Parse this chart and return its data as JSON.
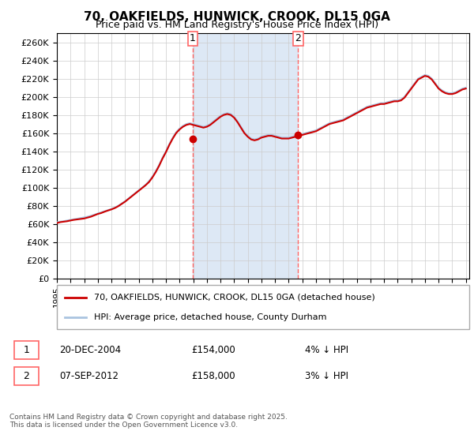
{
  "title": "70, OAKFIELDS, HUNWICK, CROOK, DL15 0GA",
  "subtitle": "Price paid vs. HM Land Registry's House Price Index (HPI)",
  "background_color": "#ffffff",
  "plot_bg_color": "#ffffff",
  "grid_color": "#cccccc",
  "hpi_color": "#aac4e0",
  "price_color": "#cc0000",
  "highlight_bg": "#dde8f5",
  "dashed_line_color": "#ff6666",
  "ylim": [
    0,
    270000
  ],
  "ytick_step": 20000,
  "legend_label_price": "70, OAKFIELDS, HUNWICK, CROOK, DL15 0GA (detached house)",
  "legend_label_hpi": "HPI: Average price, detached house, County Durham",
  "sale1_date": "20-DEC-2004",
  "sale1_price": "£154,000",
  "sale1_note": "4% ↓ HPI",
  "sale2_date": "07-SEP-2012",
  "sale2_price": "£158,000",
  "sale2_note": "3% ↓ HPI",
  "footer": "Contains HM Land Registry data © Crown copyright and database right 2025.\nThis data is licensed under the Open Government Licence v3.0.",
  "sale1_x": 2004.97,
  "sale2_x": 2012.69,
  "hpi_x": [
    1995.0,
    1995.25,
    1995.5,
    1995.75,
    1996.0,
    1996.25,
    1996.5,
    1996.75,
    1997.0,
    1997.25,
    1997.5,
    1997.75,
    1998.0,
    1998.25,
    1998.5,
    1998.75,
    1999.0,
    1999.25,
    1999.5,
    1999.75,
    2000.0,
    2000.25,
    2000.5,
    2000.75,
    2001.0,
    2001.25,
    2001.5,
    2001.75,
    2002.0,
    2002.25,
    2002.5,
    2002.75,
    2003.0,
    2003.25,
    2003.5,
    2003.75,
    2004.0,
    2004.25,
    2004.5,
    2004.75,
    2005.0,
    2005.25,
    2005.5,
    2005.75,
    2006.0,
    2006.25,
    2006.5,
    2006.75,
    2007.0,
    2007.25,
    2007.5,
    2007.75,
    2008.0,
    2008.25,
    2008.5,
    2008.75,
    2009.0,
    2009.25,
    2009.5,
    2009.75,
    2010.0,
    2010.25,
    2010.5,
    2010.75,
    2011.0,
    2011.25,
    2011.5,
    2011.75,
    2012.0,
    2012.25,
    2012.5,
    2012.75,
    2013.0,
    2013.25,
    2013.5,
    2013.75,
    2014.0,
    2014.25,
    2014.5,
    2014.75,
    2015.0,
    2015.25,
    2015.5,
    2015.75,
    2016.0,
    2016.25,
    2016.5,
    2016.75,
    2017.0,
    2017.25,
    2017.5,
    2017.75,
    2018.0,
    2018.25,
    2018.5,
    2018.75,
    2019.0,
    2019.25,
    2019.5,
    2019.75,
    2020.0,
    2020.25,
    2020.5,
    2020.75,
    2021.0,
    2021.25,
    2021.5,
    2021.75,
    2022.0,
    2022.25,
    2022.5,
    2022.75,
    2023.0,
    2023.25,
    2023.5,
    2023.75,
    2024.0,
    2024.25,
    2024.5,
    2024.75,
    2025.0
  ],
  "hpi_y": [
    62000,
    62500,
    63000,
    63800,
    64500,
    65200,
    65800,
    66500,
    67200,
    68000,
    69000,
    70200,
    71500,
    72800,
    74000,
    75200,
    76500,
    78000,
    80000,
    82500,
    85000,
    88000,
    91000,
    94000,
    97000,
    100000,
    103000,
    107000,
    112000,
    118000,
    125000,
    133000,
    140000,
    148000,
    155000,
    161000,
    165000,
    168000,
    170000,
    171000,
    170000,
    169000,
    168000,
    167000,
    168000,
    170000,
    173000,
    176000,
    179000,
    181000,
    182000,
    181000,
    178000,
    173000,
    167000,
    161000,
    157000,
    154000,
    153000,
    154000,
    156000,
    157000,
    158000,
    158000,
    157000,
    156000,
    155000,
    155000,
    155000,
    156000,
    157000,
    158000,
    159000,
    160000,
    161000,
    162000,
    163000,
    165000,
    167000,
    169000,
    171000,
    172000,
    173000,
    174000,
    175000,
    177000,
    179000,
    181000,
    183000,
    185000,
    187000,
    189000,
    190000,
    191000,
    192000,
    193000,
    193000,
    194000,
    195000,
    196000,
    196000,
    197000,
    200000,
    205000,
    210000,
    215000,
    220000,
    222000,
    224000,
    223000,
    220000,
    215000,
    210000,
    207000,
    205000,
    204000,
    204000,
    205000,
    207000,
    209000,
    210000
  ],
  "price_x": [
    1995.0,
    1995.25,
    1995.5,
    1995.75,
    1996.0,
    1996.25,
    1996.5,
    1996.75,
    1997.0,
    1997.25,
    1997.5,
    1997.75,
    1998.0,
    1998.25,
    1998.5,
    1998.75,
    1999.0,
    1999.25,
    1999.5,
    1999.75,
    2000.0,
    2000.25,
    2000.5,
    2000.75,
    2001.0,
    2001.25,
    2001.5,
    2001.75,
    2002.0,
    2002.25,
    2002.5,
    2002.75,
    2003.0,
    2003.25,
    2003.5,
    2003.75,
    2004.0,
    2004.25,
    2004.5,
    2004.75,
    2005.0,
    2005.25,
    2005.5,
    2005.75,
    2006.0,
    2006.25,
    2006.5,
    2006.75,
    2007.0,
    2007.25,
    2007.5,
    2007.75,
    2008.0,
    2008.25,
    2008.5,
    2008.75,
    2009.0,
    2009.25,
    2009.5,
    2009.75,
    2010.0,
    2010.25,
    2010.5,
    2010.75,
    2011.0,
    2011.25,
    2011.5,
    2011.75,
    2012.0,
    2012.25,
    2012.5,
    2012.75,
    2013.0,
    2013.25,
    2013.5,
    2013.75,
    2014.0,
    2014.25,
    2014.5,
    2014.75,
    2015.0,
    2015.25,
    2015.5,
    2015.75,
    2016.0,
    2016.25,
    2016.5,
    2016.75,
    2017.0,
    2017.25,
    2017.5,
    2017.75,
    2018.0,
    2018.25,
    2018.5,
    2018.75,
    2019.0,
    2019.25,
    2019.5,
    2019.75,
    2020.0,
    2020.25,
    2020.5,
    2020.75,
    2021.0,
    2021.25,
    2021.5,
    2021.75,
    2022.0,
    2022.25,
    2022.5,
    2022.75,
    2023.0,
    2023.25,
    2023.5,
    2023.75,
    2024.0,
    2024.25,
    2024.5,
    2024.75,
    2025.0
  ],
  "price_y": [
    61000,
    62000,
    62500,
    63000,
    63800,
    64500,
    65000,
    65500,
    66000,
    67000,
    68000,
    69500,
    71000,
    72000,
    73500,
    74800,
    76000,
    77500,
    79500,
    82000,
    84500,
    87500,
    90500,
    93500,
    96500,
    99500,
    102500,
    106000,
    111000,
    117000,
    124000,
    132000,
    139000,
    147000,
    154000,
    160000,
    164000,
    167000,
    169000,
    170000,
    169000,
    168000,
    167000,
    166000,
    167000,
    169000,
    172000,
    175000,
    178000,
    180000,
    181000,
    180000,
    177000,
    172000,
    166000,
    160000,
    156000,
    153000,
    152000,
    153000,
    155000,
    156000,
    157000,
    157000,
    156000,
    155000,
    154000,
    154000,
    154000,
    155000,
    156000,
    157000,
    158000,
    159000,
    160000,
    161000,
    162000,
    164000,
    166000,
    168000,
    170000,
    171000,
    172000,
    173000,
    174000,
    176000,
    178000,
    180000,
    182000,
    184000,
    186000,
    188000,
    189000,
    190000,
    191000,
    192000,
    192000,
    193000,
    194000,
    195000,
    195000,
    196000,
    199000,
    204000,
    209000,
    214000,
    219000,
    221000,
    223000,
    222000,
    219000,
    214000,
    209000,
    206000,
    204000,
    203000,
    203000,
    204000,
    206000,
    208000,
    209000
  ]
}
